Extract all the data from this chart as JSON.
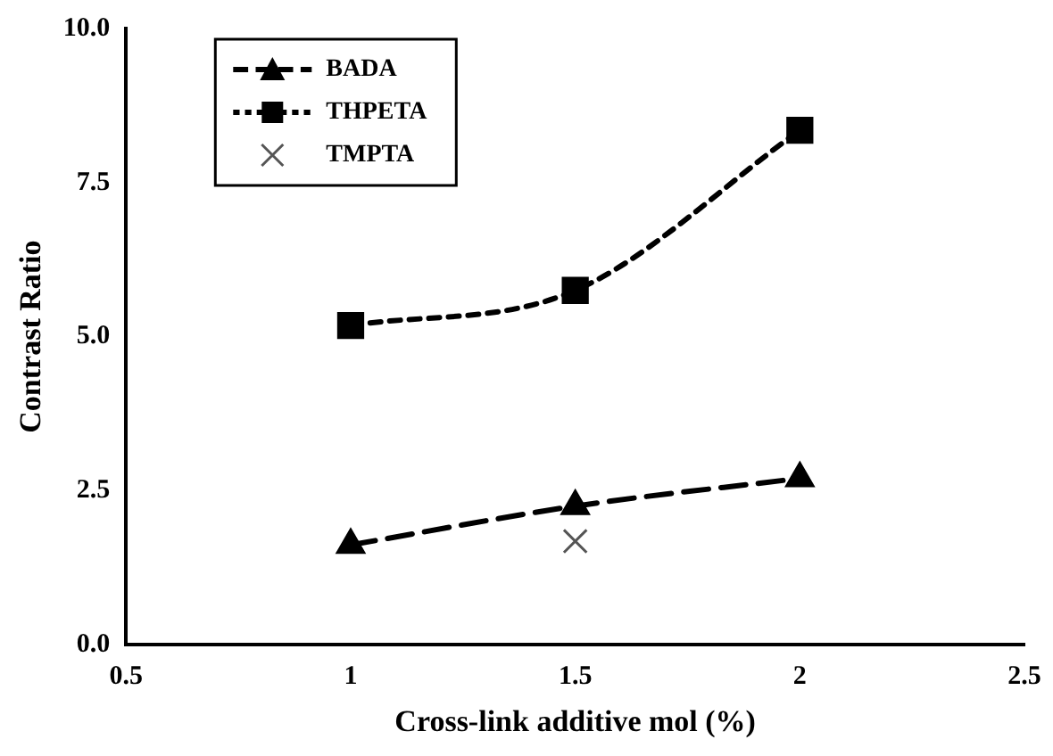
{
  "chart_data": {
    "type": "line",
    "xlabel": "Cross-link additive mol (%)",
    "ylabel": "Contrast Ratio",
    "xlim": [
      0.5,
      2.5
    ],
    "xticks": [
      0.5,
      1,
      1.5,
      2,
      2.5
    ],
    "ylim": [
      0,
      10
    ],
    "yticks": [
      {
        "value": 0,
        "label": "0.0"
      },
      {
        "value": 2.5,
        "label": "2.5"
      },
      {
        "value": 5,
        "label": "5.0"
      },
      {
        "value": 7.5,
        "label": "7.5"
      },
      {
        "value": 10,
        "label": "10.0"
      }
    ],
    "grid": false,
    "legend": "top left",
    "series": [
      {
        "name": "BADA",
        "color": "#000000",
        "x": [
          1,
          1.5,
          2
        ],
        "values": [
          1.62,
          2.25,
          2.7
        ],
        "marker": "triangle",
        "line_style": "dashed"
      },
      {
        "name": "THPETA",
        "color": "#000000",
        "x": [
          1,
          1.5,
          2
        ],
        "values": [
          5.18,
          5.75,
          8.35
        ],
        "marker": "square",
        "line_style": "dotted"
      },
      {
        "name": "TMPTA",
        "type": "scatter",
        "color": "#555555",
        "x": [
          1.5
        ],
        "values": [
          1.68
        ],
        "marker": "cross"
      }
    ]
  }
}
